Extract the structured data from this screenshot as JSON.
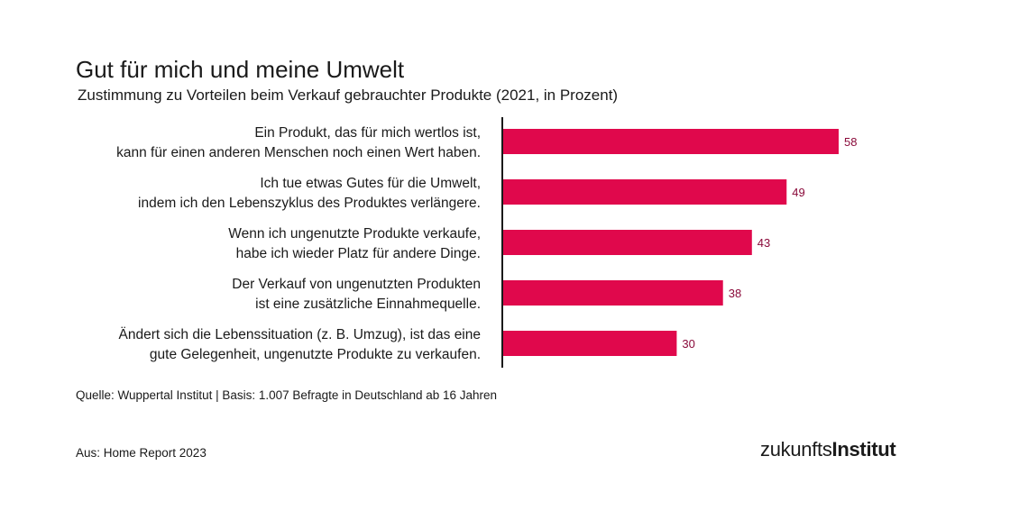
{
  "header": {
    "title": "Gut für mich und meine Umwelt",
    "subtitle": "Zustimmung zu Vorteilen beim Verkauf gebrauchter Produkte (2021, in Prozent)"
  },
  "chart_data": {
    "type": "bar",
    "orientation": "horizontal",
    "categories": [
      [
        "Ein Produkt, das für mich wertlos ist,",
        "kann für einen anderen Menschen noch einen Wert haben."
      ],
      [
        "Ich tue etwas Gutes für die Umwelt,",
        "indem ich den Lebenszyklus des Produktes verlängere."
      ],
      [
        "Wenn ich ungenutzte Produkte verkaufe,",
        "habe ich wieder Platz für andere Dinge."
      ],
      [
        "Der Verkauf von ungenutzten Produkten",
        "ist eine zusätzliche Einnahmequelle."
      ],
      [
        "Ändert sich die Lebenssituation (z. B. Umzug), ist das eine",
        "gute Gelegenheit, ungenutzte Produkte zu verkaufen."
      ]
    ],
    "values": [
      58,
      49,
      43,
      38,
      30
    ],
    "value_labels": [
      "58",
      "49",
      "43",
      "38",
      "30"
    ],
    "xlim": [
      0,
      60
    ],
    "grid": false,
    "bar_color": "#e0084c",
    "value_label_color": "#8a0a3a"
  },
  "footer": {
    "source": "Quelle: Wuppertal Institut | Basis: 1.007 Befragte in Deutschland ab 16 Jahren",
    "from": "Aus: Home Report 2023",
    "logo_light": "zukunfts",
    "logo_bold": "Institut"
  }
}
